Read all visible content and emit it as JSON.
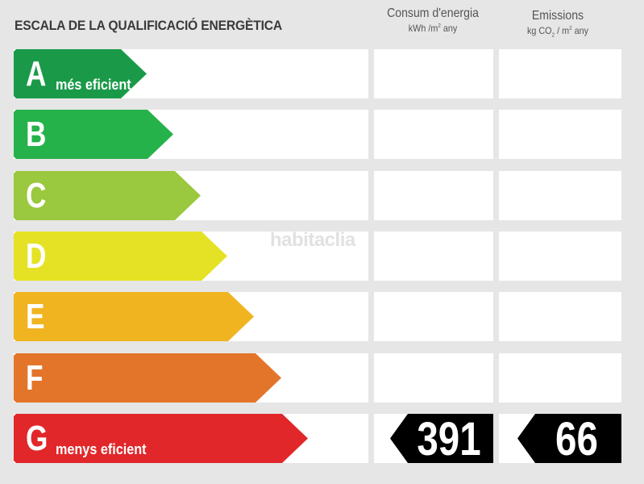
{
  "title": "ESCALA DE LA QUALIFICACIÓ ENERGÈTICA",
  "columns": {
    "consumption": {
      "label": "Consum d'energia",
      "unit_a": "kWh /m",
      "unit_sup": "2",
      "unit_b": " any"
    },
    "emissions": {
      "label": "Emissions",
      "unit_a": "kg CO",
      "unit_sub": "2",
      "unit_b": " / m",
      "unit_sup": "2",
      "unit_c": " any"
    }
  },
  "grades": [
    {
      "letter": "A",
      "note": "més eficient",
      "color": "#1a9a48"
    },
    {
      "letter": "B",
      "note": "",
      "color": "#25b24a"
    },
    {
      "letter": "C",
      "note": "",
      "color": "#9ac83e"
    },
    {
      "letter": "D",
      "note": "",
      "color": "#e5e225"
    },
    {
      "letter": "E",
      "note": "",
      "color": "#f0b420"
    },
    {
      "letter": "F",
      "note": "",
      "color": "#e3752a"
    },
    {
      "letter": "G",
      "note": "menys eficient",
      "color": "#e1272a"
    }
  ],
  "rating": {
    "grade": "G",
    "consumption_value": "391",
    "emissions_value": "66"
  },
  "watermark": "habitaclia"
}
